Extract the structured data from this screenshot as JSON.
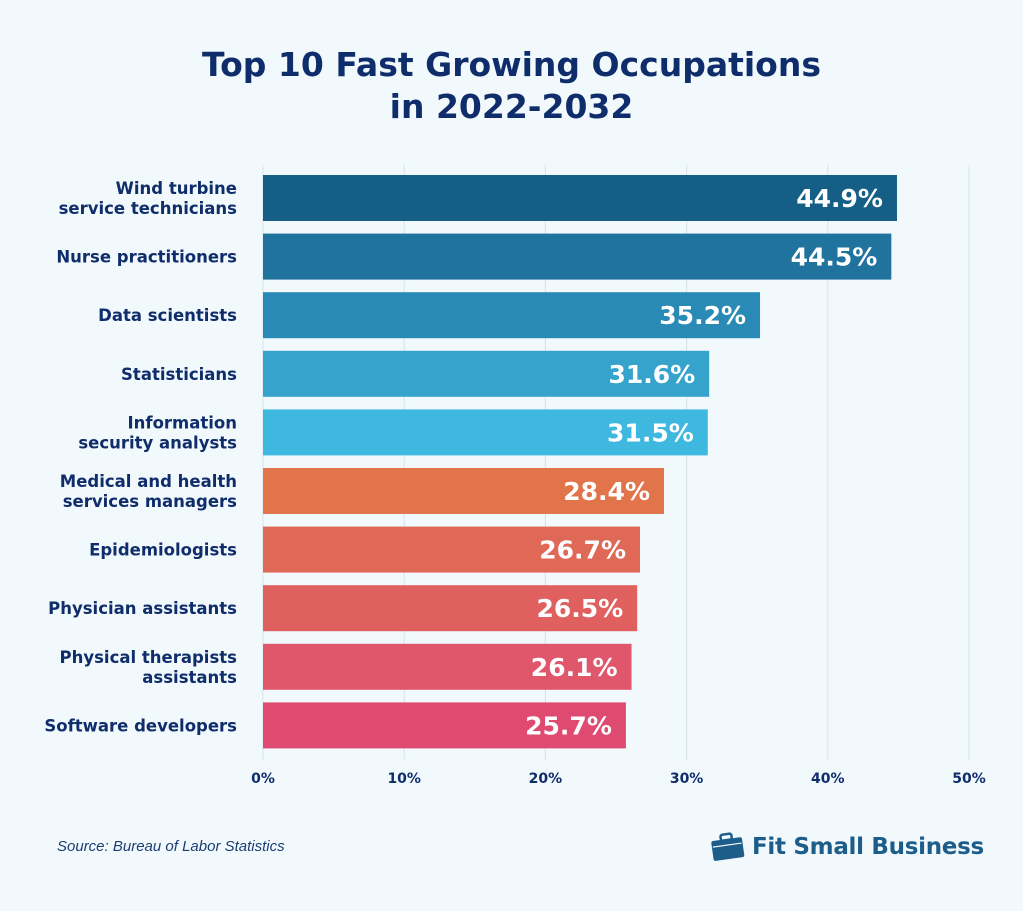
{
  "chart_data": {
    "type": "bar",
    "orientation": "horizontal",
    "title": "Top 10 Fast Growing Occupations\nin 2022-2032",
    "title_lines": [
      "Top 10 Fast Growing Occupations",
      "in 2022-2032"
    ],
    "categories": [
      [
        "Wind turbine",
        "service technicians"
      ],
      [
        "Nurse practitioners"
      ],
      [
        "Data scientists"
      ],
      [
        "Statisticians"
      ],
      [
        "Information",
        "security analysts"
      ],
      [
        "Medical and health",
        "services managers"
      ],
      [
        "Epidemiologists"
      ],
      [
        "Physician assistants"
      ],
      [
        "Physical therapists",
        "assistants"
      ],
      [
        "Software developers"
      ]
    ],
    "values": [
      44.9,
      44.5,
      35.2,
      31.6,
      31.5,
      28.4,
      26.7,
      26.5,
      26.1,
      25.7
    ],
    "value_labels": [
      "44.9%",
      "44.5%",
      "35.2%",
      "31.6%",
      "31.5%",
      "28.4%",
      "26.7%",
      "26.5%",
      "26.1%",
      "25.7%"
    ],
    "colors": [
      "#155e85",
      "#1f739d",
      "#2a8ab6",
      "#35a3cc",
      "#3fb8e0",
      "#e2744b",
      "#e06857",
      "#e05f5f",
      "#e0566b",
      "#de4a70"
    ],
    "xlim": [
      0,
      50
    ],
    "xticks": [
      0,
      10,
      20,
      30,
      40,
      50
    ],
    "xtick_labels": [
      "0%",
      "10%",
      "20%",
      "30%",
      "40%",
      "50%"
    ],
    "grid": "vertical",
    "xlabel": "",
    "ylabel": ""
  },
  "source": "Source:  Bureau of Labor Statistics",
  "brand": {
    "name": "Fit Small Business",
    "icon": "briefcase-icon",
    "color": "#1c5d8a"
  }
}
